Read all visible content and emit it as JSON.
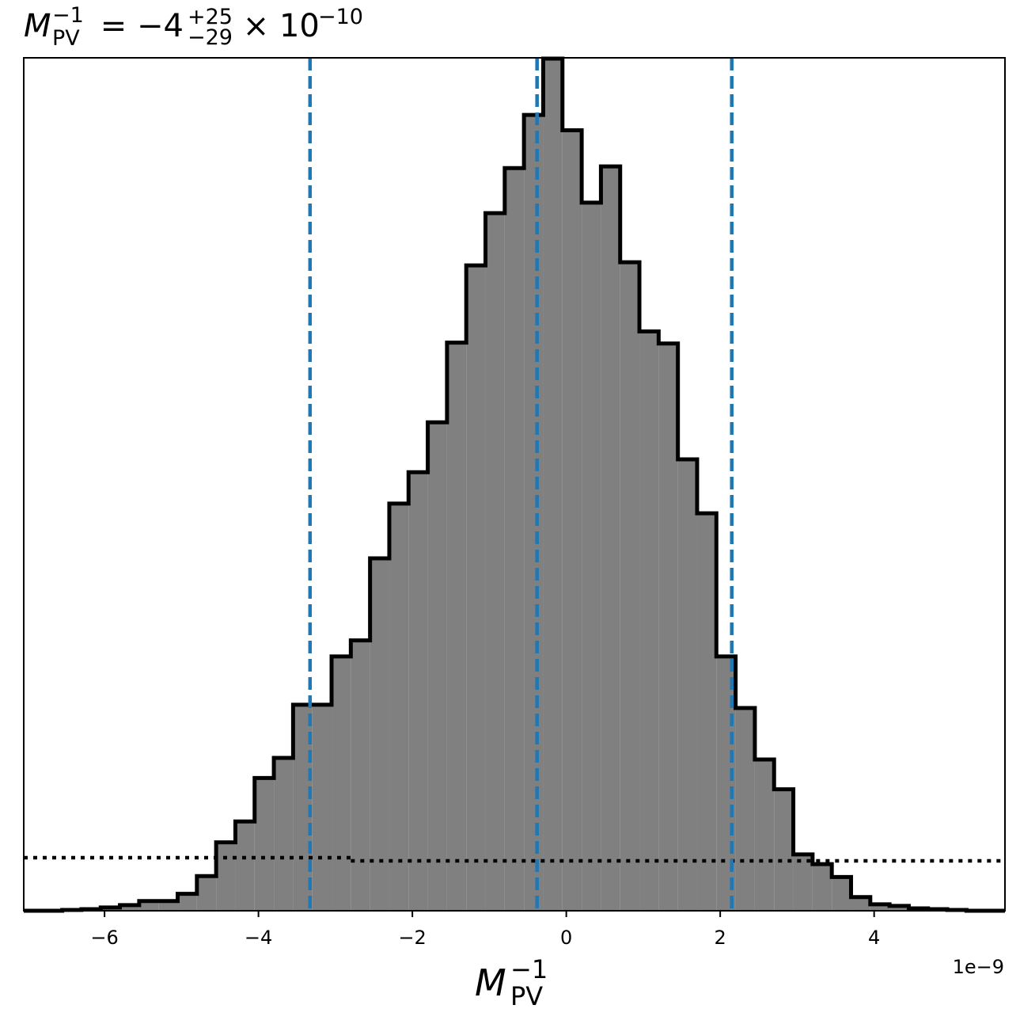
{
  "chart_data": {
    "type": "histogram",
    "title": {
      "symbol": "M",
      "sub": "PV",
      "sup": "−1",
      "eq": " = −4",
      "err_plus": "+25",
      "err_minus": "−29",
      "times": " × 10",
      "exp": "−10"
    },
    "xlabel": {
      "symbol": "M",
      "sub": "PV",
      "sup": "−1"
    },
    "ylabel": "",
    "x_offset_label": "1e−9",
    "x_scale": 1e-09,
    "xlim": [
      -7.05,
      5.7
    ],
    "ylim": [
      0,
      1060
    ],
    "show_yticks": false,
    "grid": false,
    "xticks": [
      -6,
      -4,
      -2,
      0,
      2,
      4
    ],
    "xtick_labels": [
      "−6",
      "−4",
      "−2",
      "0",
      "2",
      "4"
    ],
    "histogram": {
      "fill_color": "#808080",
      "edge_color": "#000000",
      "bin_edges": [
        -7.05,
        -6.8,
        -6.55,
        -6.3,
        -6.05,
        -5.8,
        -5.55,
        -5.3,
        -5.05,
        -4.8,
        -4.55,
        -4.3,
        -4.05,
        -3.8,
        -3.55,
        -3.3,
        -3.05,
        -2.8,
        -2.55,
        -2.3,
        -2.05,
        -1.8,
        -1.55,
        -1.3,
        -1.05,
        -0.8,
        -0.55,
        -0.3,
        -0.05,
        0.2,
        0.45,
        0.7,
        0.95,
        1.2,
        1.45,
        1.7,
        1.95,
        2.2,
        2.45,
        2.7,
        2.95,
        3.2,
        3.45,
        3.7,
        3.95,
        4.2,
        4.45,
        4.7,
        4.95,
        5.2,
        5.45,
        5.7
      ],
      "counts": [
        0,
        0,
        1,
        2,
        4,
        7,
        12,
        12,
        21,
        43,
        85,
        111,
        165,
        190,
        256,
        256,
        316,
        336,
        438,
        506,
        545,
        607,
        706,
        802,
        867,
        923,
        989,
        1059,
        970,
        880,
        925,
        806,
        720,
        705,
        561,
        494,
        316,
        252,
        188,
        151,
        70,
        58,
        42,
        17,
        8,
        6,
        3,
        2,
        1,
        0,
        0
      ]
    },
    "reference_lines": {
      "dashed_color": "#1f77b4",
      "dashed_x": [
        -3.33,
        -0.38,
        2.15
      ],
      "dotted_color": "#000000",
      "dotted_segments": [
        {
          "x": [
            -7.05,
            -2.8
          ],
          "y": 66
        },
        {
          "x": [
            -2.8,
            5.7
          ],
          "y": 62
        }
      ]
    }
  }
}
